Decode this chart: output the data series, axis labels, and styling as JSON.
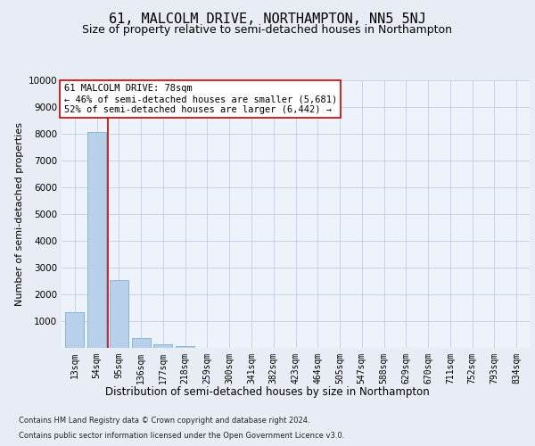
{
  "title": "61, MALCOLM DRIVE, NORTHAMPTON, NN5 5NJ",
  "subtitle": "Size of property relative to semi-detached houses in Northampton",
  "xlabel": "Distribution of semi-detached houses by size in Northampton",
  "ylabel": "Number of semi-detached properties",
  "categories": [
    "13sqm",
    "54sqm",
    "95sqm",
    "136sqm",
    "177sqm",
    "218sqm",
    "259sqm",
    "300sqm",
    "341sqm",
    "382sqm",
    "423sqm",
    "464sqm",
    "505sqm",
    "547sqm",
    "588sqm",
    "629sqm",
    "670sqm",
    "711sqm",
    "752sqm",
    "793sqm",
    "834sqm"
  ],
  "values": [
    1320,
    8050,
    2550,
    380,
    135,
    80,
    0,
    0,
    0,
    0,
    0,
    0,
    0,
    0,
    0,
    0,
    0,
    0,
    0,
    0,
    0
  ],
  "bar_color": "#b8d0ea",
  "bar_edge_color": "#7aafd4",
  "vline_x": 1.5,
  "vline_color": "#cc0000",
  "annotation_text": "61 MALCOLM DRIVE: 78sqm\n← 46% of semi-detached houses are smaller (5,681)\n52% of semi-detached houses are larger (6,442) →",
  "annotation_box_color": "#ffffff",
  "annotation_box_edge": "#cc0000",
  "ylim": [
    0,
    10000
  ],
  "yticks": [
    0,
    1000,
    2000,
    3000,
    4000,
    5000,
    6000,
    7000,
    8000,
    9000,
    10000
  ],
  "footer_line1": "Contains HM Land Registry data © Crown copyright and database right 2024.",
  "footer_line2": "Contains public sector information licensed under the Open Government Licence v3.0.",
  "bg_color": "#e8edf5",
  "plot_bg_color": "#eef2fa",
  "title_fontsize": 11,
  "subtitle_fontsize": 9,
  "tick_fontsize": 7,
  "ylabel_fontsize": 8,
  "xlabel_fontsize": 8.5,
  "footer_fontsize": 6,
  "annotation_fontsize": 7.5
}
